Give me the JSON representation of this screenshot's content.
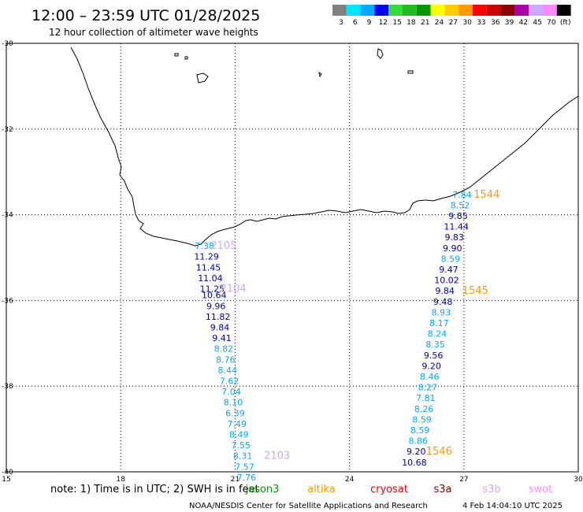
{
  "header": {
    "title": "12:00 – 23:59 UTC 01/28/2025",
    "subtitle": "12 hour collection of altimeter wave heights"
  },
  "legend": {
    "colors": [
      "#808080",
      "#00e5ff",
      "#00aaff",
      "#0000ff",
      "#33dd33",
      "#22bb22",
      "#009900",
      "#ffff00",
      "#ffcc00",
      "#ff9900",
      "#ff0000",
      "#cc0000",
      "#880000",
      "#aa00aa",
      "#ccaaff",
      "#ff88ff",
      "#000000"
    ],
    "labels": [
      "3",
      "6",
      "9",
      "12",
      "15",
      "18",
      "21",
      "24",
      "27",
      "30",
      "33",
      "36",
      "39",
      "42",
      "45",
      "70",
      "(ft)"
    ]
  },
  "map": {
    "lon_range": [
      15,
      30
    ],
    "lat_range": [
      -40,
      -30
    ],
    "lon_ticks": [
      "15",
      "18",
      "21",
      "24",
      "27",
      "30"
    ],
    "lat_ticks": [
      "-30",
      "-32",
      "-34",
      "-36",
      "-38",
      "-40"
    ],
    "grid": "dotted",
    "region": "South Africa coastline"
  },
  "tracks": [
    {
      "pass_label": "2105",
      "pass_color": "#ccaaff",
      "pass_lon": 20.7,
      "pass_lat": -34.8,
      "points": [
        {
          "lon": 20.2,
          "lat": -34.8,
          "value": "7.38",
          "color": "#00aaff"
        },
        {
          "lon": 20.25,
          "lat": -35.05,
          "value": "11.29",
          "color": "#0000aa"
        },
        {
          "lon": 20.3,
          "lat": -35.3,
          "value": "11.45",
          "color": "#0000aa"
        },
        {
          "lon": 20.35,
          "lat": -35.55,
          "value": "11.04",
          "color": "#0000aa"
        }
      ]
    },
    {
      "pass_label": "2104",
      "pass_color": "#ccaaff",
      "pass_lon": 20.95,
      "pass_lat": -35.8,
      "points": [
        {
          "lon": 20.4,
          "lat": -35.8,
          "value": "11.25",
          "color": "#0000aa"
        },
        {
          "lon": 20.45,
          "lat": -35.95,
          "value": "10.64",
          "color": "#0000aa"
        },
        {
          "lon": 20.5,
          "lat": -36.2,
          "value": "9.96",
          "color": "#0000aa"
        },
        {
          "lon": 20.55,
          "lat": -36.45,
          "value": "11.82",
          "color": "#0000aa"
        },
        {
          "lon": 20.6,
          "lat": -36.7,
          "value": "9.84",
          "color": "#0000aa"
        },
        {
          "lon": 20.65,
          "lat": -36.95,
          "value": "9.41",
          "color": "#0000aa"
        },
        {
          "lon": 20.7,
          "lat": -37.2,
          "value": "8.82",
          "color": "#00aaff"
        },
        {
          "lon": 20.75,
          "lat": -37.45,
          "value": "8.76",
          "color": "#00aaff"
        },
        {
          "lon": 20.8,
          "lat": -37.7,
          "value": "8.44",
          "color": "#00aaff"
        },
        {
          "lon": 20.85,
          "lat": -37.95,
          "value": "7.62",
          "color": "#00aaff"
        },
        {
          "lon": 20.9,
          "lat": -38.2,
          "value": "7.04",
          "color": "#00aaff"
        },
        {
          "lon": 20.95,
          "lat": -38.45,
          "value": "8.10",
          "color": "#00aaff"
        },
        {
          "lon": 21.0,
          "lat": -38.7,
          "value": "6.39",
          "color": "#00aaff"
        },
        {
          "lon": 21.05,
          "lat": -38.95,
          "value": "7.49",
          "color": "#00aaff"
        },
        {
          "lon": 21.1,
          "lat": -39.2,
          "value": "8.49",
          "color": "#00aaff"
        },
        {
          "lon": 21.15,
          "lat": -39.45,
          "value": "7.55",
          "color": "#00aaff"
        }
      ]
    },
    {
      "pass_label": "2103",
      "pass_color": "#ccaaff",
      "pass_lon": 22.1,
      "pass_lat": -39.7,
      "points": [
        {
          "lon": 21.2,
          "lat": -39.7,
          "value": "8.31",
          "color": "#00aaff"
        },
        {
          "lon": 21.25,
          "lat": -39.95,
          "value": "7.57",
          "color": "#00aaff"
        },
        {
          "lon": 21.3,
          "lat": -40.2,
          "value": "7.76",
          "color": "#00aaff"
        }
      ]
    },
    {
      "pass_label": "1544",
      "pass_color": "#ff9900",
      "pass_lon": 27.6,
      "pass_lat": -33.6,
      "points": [
        {
          "lon": 26.95,
          "lat": -33.6,
          "value": "7.84",
          "color": "#00aaff"
        },
        {
          "lon": 26.9,
          "lat": -33.85,
          "value": "8.52",
          "color": "#00aaff"
        },
        {
          "lon": 26.85,
          "lat": -34.1,
          "value": "9.85",
          "color": "#0000aa"
        },
        {
          "lon": 26.8,
          "lat": -34.35,
          "value": "11.44",
          "color": "#0000aa"
        },
        {
          "lon": 26.75,
          "lat": -34.6,
          "value": "9.83",
          "color": "#0000aa"
        },
        {
          "lon": 26.7,
          "lat": -34.85,
          "value": "9.90",
          "color": "#0000aa"
        },
        {
          "lon": 26.65,
          "lat": -35.1,
          "value": "8.59",
          "color": "#00aaff"
        },
        {
          "lon": 26.6,
          "lat": -35.35,
          "value": "9.47",
          "color": "#0000aa"
        },
        {
          "lon": 26.55,
          "lat": -35.6,
          "value": "10.02",
          "color": "#0000aa"
        }
      ]
    },
    {
      "pass_label": "1545",
      "pass_color": "#ff9900",
      "pass_lon": 27.3,
      "pass_lat": -35.85,
      "points": [
        {
          "lon": 26.5,
          "lat": -35.85,
          "value": "9.84",
          "color": "#0000aa"
        },
        {
          "lon": 26.45,
          "lat": -36.1,
          "value": "9.48",
          "color": "#0000aa"
        },
        {
          "lon": 26.4,
          "lat": -36.35,
          "value": "8.93",
          "color": "#00aaff"
        },
        {
          "lon": 26.35,
          "lat": -36.6,
          "value": "8.17",
          "color": "#00aaff"
        },
        {
          "lon": 26.3,
          "lat": -36.85,
          "value": "8.24",
          "color": "#00aaff"
        },
        {
          "lon": 26.25,
          "lat": -37.1,
          "value": "8.35",
          "color": "#00aaff"
        },
        {
          "lon": 26.2,
          "lat": -37.35,
          "value": "9.56",
          "color": "#0000aa"
        },
        {
          "lon": 26.15,
          "lat": -37.6,
          "value": "9.20",
          "color": "#0000aa"
        },
        {
          "lon": 26.1,
          "lat": -37.85,
          "value": "8.46",
          "color": "#00aaff"
        },
        {
          "lon": 26.05,
          "lat": -38.1,
          "value": "8.27",
          "color": "#00aaff"
        },
        {
          "lon": 26.0,
          "lat": -38.35,
          "value": "7.81",
          "color": "#00aaff"
        },
        {
          "lon": 25.95,
          "lat": -38.6,
          "value": "8.26",
          "color": "#00aaff"
        },
        {
          "lon": 25.9,
          "lat": -38.85,
          "value": "8.59",
          "color": "#00aaff"
        },
        {
          "lon": 25.85,
          "lat": -39.1,
          "value": "8.59",
          "color": "#00aaff"
        },
        {
          "lon": 25.8,
          "lat": -39.35,
          "value": "8.86",
          "color": "#00aaff"
        }
      ]
    },
    {
      "pass_label": "1546",
      "pass_color": "#ff9900",
      "pass_lon": 26.35,
      "pass_lat": -39.6,
      "points": [
        {
          "lon": 25.75,
          "lat": -39.6,
          "value": "9.20",
          "color": "#0000aa"
        },
        {
          "lon": 25.7,
          "lat": -39.85,
          "value": "10.68",
          "color": "#0000aa"
        }
      ]
    }
  ],
  "footer": {
    "note": "note: 1) Time is in UTC; 2) SWH is in feet",
    "satellites": [
      {
        "name": "jason3",
        "color": "#009900"
      },
      {
        "name": "altika",
        "color": "#ff9900"
      },
      {
        "name": "cryosat",
        "color": "#ff0000"
      },
      {
        "name": "s3a",
        "color": "#880000"
      },
      {
        "name": "s3b",
        "color": "#ccaaff"
      },
      {
        "name": "swot",
        "color": "#ff88ff"
      }
    ],
    "credit": "NOAA/NESDIS Center for Satellite Applications and Research",
    "timestamp": "4 Feb 14:04:10 UTC 2025"
  }
}
